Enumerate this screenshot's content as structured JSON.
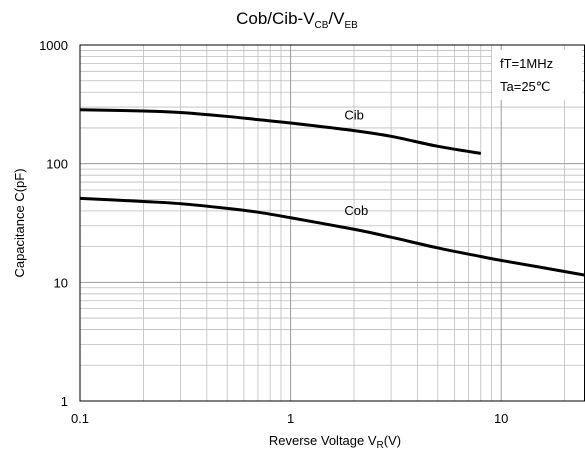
{
  "chart_data": {
    "type": "line",
    "title": {
      "main": "Cob/Cib-V",
      "sub1": "CB",
      "sep": "/V",
      "sub2": "EB"
    },
    "xlabel": {
      "main": "Reverse Voltage   V",
      "sub": "R",
      "tail": "(V)"
    },
    "ylabel": "Capacitance  C(pF)",
    "x_scale": "log",
    "y_scale": "log",
    "xlim": [
      0.1,
      25
    ],
    "ylim": [
      1,
      1000
    ],
    "x_ticks": [
      0.1,
      1,
      10
    ],
    "x_tick_labels": [
      "0.1",
      "1",
      "10"
    ],
    "y_ticks": [
      1,
      10,
      100,
      1000
    ],
    "y_tick_labels": [
      "1",
      "10",
      "100",
      "1000"
    ],
    "grid": true,
    "annotations": [
      "fT=1MHz",
      "Ta=25℃"
    ],
    "series": [
      {
        "name": "Cib",
        "x": [
          0.1,
          0.2,
          0.3,
          0.5,
          0.7,
          1.0,
          2.0,
          3.0,
          5.0,
          8.0
        ],
        "y": [
          285,
          278,
          270,
          250,
          235,
          220,
          190,
          170,
          140,
          122
        ]
      },
      {
        "name": "Cob",
        "x": [
          0.1,
          0.2,
          0.3,
          0.5,
          0.7,
          1.0,
          2.0,
          3.0,
          5.0,
          8.0,
          10.0,
          15.0,
          25.0
        ],
        "y": [
          51,
          48,
          46,
          42,
          39,
          35,
          28,
          24,
          19.5,
          16.5,
          15.3,
          13.5,
          11.5
        ]
      }
    ]
  }
}
